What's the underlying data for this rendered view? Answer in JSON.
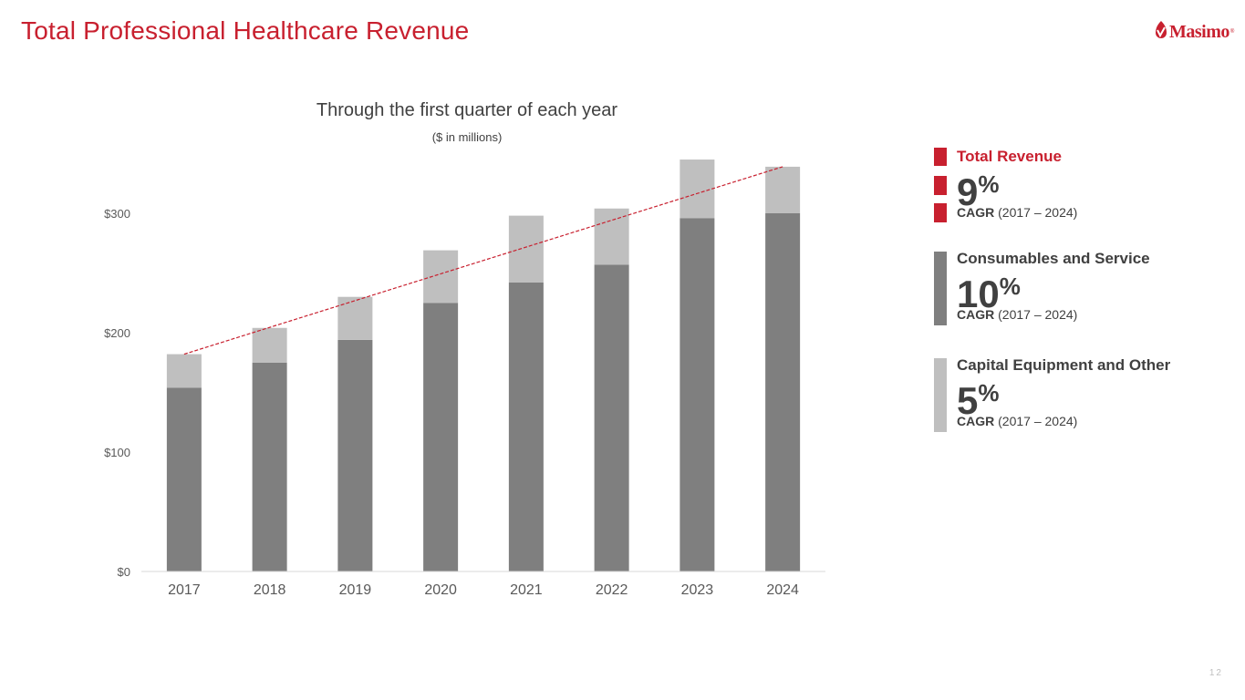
{
  "header": {
    "title": "Total Professional Healthcare Revenue",
    "logo_text": "Masimo",
    "logo_reg": "®"
  },
  "chart_data": {
    "type": "bar",
    "stacked": true,
    "title": "Through the first quarter of each year",
    "subtitle": "($ in millions)",
    "categories": [
      "2017",
      "2018",
      "2019",
      "2020",
      "2021",
      "2022",
      "2023",
      "2024"
    ],
    "series": [
      {
        "name": "Consumables and Service",
        "color": "#7f7f7f",
        "values": [
          154,
          175,
          194,
          225,
          242,
          257,
          296,
          300
        ]
      },
      {
        "name": "Capital Equipment and Other",
        "color": "#bfbfbf",
        "values": [
          28,
          29,
          36,
          44,
          56,
          47,
          49,
          39
        ]
      }
    ],
    "trendline": {
      "name": "Total Revenue trend",
      "color": "#c8202f",
      "style": "dashed",
      "start_value": 182,
      "end_value": 339
    },
    "yticks": [
      "$0",
      "$100",
      "$200",
      "$300"
    ],
    "ytick_values": [
      0,
      100,
      200,
      300
    ],
    "ylim": [
      0,
      350
    ],
    "grid": false
  },
  "legend": [
    {
      "label": "Total Revenue",
      "value": "9",
      "pct": "%",
      "cagr_label": "CAGR",
      "cagr_period": "(2017 – 2024)",
      "color": "#c8202f",
      "label_color": "#c8202f"
    },
    {
      "label": "Consumables and Service",
      "value": "10",
      "pct": "%",
      "cagr_label": "CAGR",
      "cagr_period": "(2017 – 2024)",
      "color": "#7f7f7f",
      "label_color": "#404040"
    },
    {
      "label": "Capital Equipment and Other",
      "value": "5",
      "pct": "%",
      "cagr_label": "CAGR",
      "cagr_period": "(2017 – 2024)",
      "color": "#bfbfbf",
      "label_color": "#404040"
    }
  ],
  "footer": {
    "page_number": "12"
  }
}
